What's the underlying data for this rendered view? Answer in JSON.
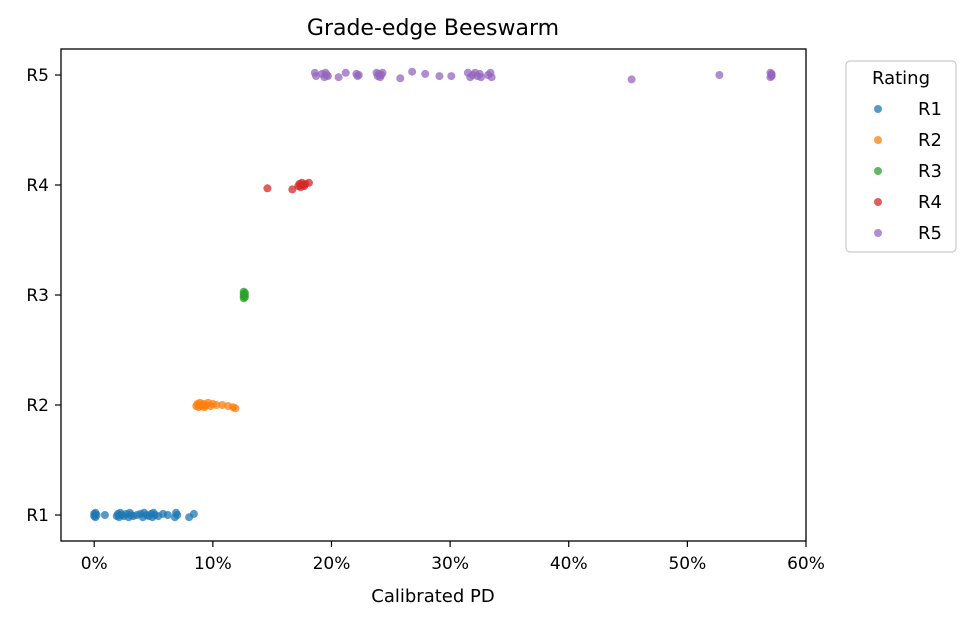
{
  "chart_data": {
    "type": "scatter",
    "title": "Grade-edge Beeswarm",
    "xlabel": "Calibrated PD",
    "ylabel": "",
    "xlim": [
      -0.028,
      0.6
    ],
    "xticks": [
      0,
      0.1,
      0.2,
      0.3,
      0.4,
      0.5,
      0.6
    ],
    "xtick_labels": [
      "0%",
      "10%",
      "20%",
      "30%",
      "40%",
      "50%",
      "60%"
    ],
    "categories": [
      "R1",
      "R2",
      "R3",
      "R4",
      "R5"
    ],
    "legend": {
      "title": "Rating",
      "location": "outside-right-top"
    },
    "grid": false,
    "series": [
      {
        "name": "R1",
        "color": "#1f77b4",
        "level": 1,
        "points": [
          {
            "x": 0.0,
            "y": 0.99
          },
          {
            "x": 0.0,
            "y": 1.01
          },
          {
            "x": 0.001,
            "y": 0.98
          },
          {
            "x": 0.001,
            "y": 1.02
          },
          {
            "x": 0.002,
            "y": 1.0
          },
          {
            "x": 0.009,
            "y": 1.0
          },
          {
            "x": 0.019,
            "y": 0.99
          },
          {
            "x": 0.02,
            "y": 1.01
          },
          {
            "x": 0.021,
            "y": 0.98
          },
          {
            "x": 0.022,
            "y": 1.02
          },
          {
            "x": 0.023,
            "y": 1.0
          },
          {
            "x": 0.025,
            "y": 0.99
          },
          {
            "x": 0.027,
            "y": 1.01
          },
          {
            "x": 0.029,
            "y": 0.98
          },
          {
            "x": 0.03,
            "y": 1.02
          },
          {
            "x": 0.031,
            "y": 1.0
          },
          {
            "x": 0.033,
            "y": 0.99
          },
          {
            "x": 0.036,
            "y": 1.0
          },
          {
            "x": 0.039,
            "y": 1.01
          },
          {
            "x": 0.041,
            "y": 0.98
          },
          {
            "x": 0.042,
            "y": 1.02
          },
          {
            "x": 0.044,
            "y": 1.0
          },
          {
            "x": 0.046,
            "y": 0.99
          },
          {
            "x": 0.048,
            "y": 1.01
          },
          {
            "x": 0.049,
            "y": 0.98
          },
          {
            "x": 0.05,
            "y": 1.02
          },
          {
            "x": 0.051,
            "y": 1.0
          },
          {
            "x": 0.054,
            "y": 0.99
          },
          {
            "x": 0.058,
            "y": 1.01
          },
          {
            "x": 0.062,
            "y": 1.0
          },
          {
            "x": 0.068,
            "y": 0.98
          },
          {
            "x": 0.069,
            "y": 1.02
          },
          {
            "x": 0.07,
            "y": 1.0
          },
          {
            "x": 0.08,
            "y": 0.98
          },
          {
            "x": 0.084,
            "y": 1.01
          }
        ]
      },
      {
        "name": "R2",
        "color": "#ff7f0e",
        "level": 2,
        "points": [
          {
            "x": 0.086,
            "y": 1.99
          },
          {
            "x": 0.087,
            "y": 2.01
          },
          {
            "x": 0.088,
            "y": 1.98
          },
          {
            "x": 0.089,
            "y": 2.02
          },
          {
            "x": 0.09,
            "y": 2.0
          },
          {
            "x": 0.091,
            "y": 1.99
          },
          {
            "x": 0.092,
            "y": 2.01
          },
          {
            "x": 0.093,
            "y": 1.98
          },
          {
            "x": 0.094,
            "y": 2.0
          },
          {
            "x": 0.096,
            "y": 2.02
          },
          {
            "x": 0.098,
            "y": 1.99
          },
          {
            "x": 0.1,
            "y": 2.01
          },
          {
            "x": 0.103,
            "y": 2.0
          },
          {
            "x": 0.108,
            "y": 2.0
          },
          {
            "x": 0.113,
            "y": 1.99
          },
          {
            "x": 0.117,
            "y": 1.98
          },
          {
            "x": 0.119,
            "y": 1.97
          }
        ]
      },
      {
        "name": "R3",
        "color": "#2ca02c",
        "level": 3,
        "points": [
          {
            "x": 0.126,
            "y": 2.97
          },
          {
            "x": 0.126,
            "y": 2.99
          },
          {
            "x": 0.126,
            "y": 3.01
          },
          {
            "x": 0.126,
            "y": 3.03
          },
          {
            "x": 0.127,
            "y": 2.98
          },
          {
            "x": 0.127,
            "y": 3.0
          },
          {
            "x": 0.127,
            "y": 3.02
          }
        ]
      },
      {
        "name": "R4",
        "color": "#d62728",
        "level": 4,
        "points": [
          {
            "x": 0.146,
            "y": 3.97
          },
          {
            "x": 0.167,
            "y": 3.96
          },
          {
            "x": 0.172,
            "y": 3.99
          },
          {
            "x": 0.173,
            "y": 4.01
          },
          {
            "x": 0.174,
            "y": 3.98
          },
          {
            "x": 0.175,
            "y": 4.02
          },
          {
            "x": 0.176,
            "y": 4.0
          },
          {
            "x": 0.177,
            "y": 3.99
          },
          {
            "x": 0.178,
            "y": 4.01
          },
          {
            "x": 0.181,
            "y": 4.02
          }
        ]
      },
      {
        "name": "R5",
        "color": "#9467bd",
        "level": 5,
        "points": [
          {
            "x": 0.186,
            "y": 5.02
          },
          {
            "x": 0.187,
            "y": 4.99
          },
          {
            "x": 0.192,
            "y": 5.01
          },
          {
            "x": 0.194,
            "y": 4.98
          },
          {
            "x": 0.195,
            "y": 5.02
          },
          {
            "x": 0.196,
            "y": 5.0
          },
          {
            "x": 0.197,
            "y": 4.99
          },
          {
            "x": 0.206,
            "y": 4.98
          },
          {
            "x": 0.212,
            "y": 5.02
          },
          {
            "x": 0.221,
            "y": 5.01
          },
          {
            "x": 0.222,
            "y": 4.99
          },
          {
            "x": 0.223,
            "y": 5.0
          },
          {
            "x": 0.238,
            "y": 5.02
          },
          {
            "x": 0.239,
            "y": 4.99
          },
          {
            "x": 0.24,
            "y": 5.01
          },
          {
            "x": 0.241,
            "y": 4.98
          },
          {
            "x": 0.242,
            "y": 5.0
          },
          {
            "x": 0.243,
            "y": 5.02
          },
          {
            "x": 0.258,
            "y": 4.97
          },
          {
            "x": 0.268,
            "y": 5.03
          },
          {
            "x": 0.279,
            "y": 5.01
          },
          {
            "x": 0.291,
            "y": 4.99
          },
          {
            "x": 0.301,
            "y": 4.99
          },
          {
            "x": 0.315,
            "y": 5.02
          },
          {
            "x": 0.317,
            "y": 4.98
          },
          {
            "x": 0.319,
            "y": 5.0
          },
          {
            "x": 0.321,
            "y": 5.02
          },
          {
            "x": 0.323,
            "y": 4.99
          },
          {
            "x": 0.325,
            "y": 5.01
          },
          {
            "x": 0.326,
            "y": 4.98
          },
          {
            "x": 0.332,
            "y": 5.0
          },
          {
            "x": 0.334,
            "y": 5.02
          },
          {
            "x": 0.335,
            "y": 4.98
          },
          {
            "x": 0.453,
            "y": 4.96
          },
          {
            "x": 0.527,
            "y": 5.0
          },
          {
            "x": 0.57,
            "y": 4.98
          },
          {
            "x": 0.57,
            "y": 5.02
          },
          {
            "x": 0.571,
            "y": 5.0
          },
          {
            "x": 0.571,
            "y": 4.99
          },
          {
            "x": 0.571,
            "y": 5.01
          }
        ]
      }
    ]
  }
}
